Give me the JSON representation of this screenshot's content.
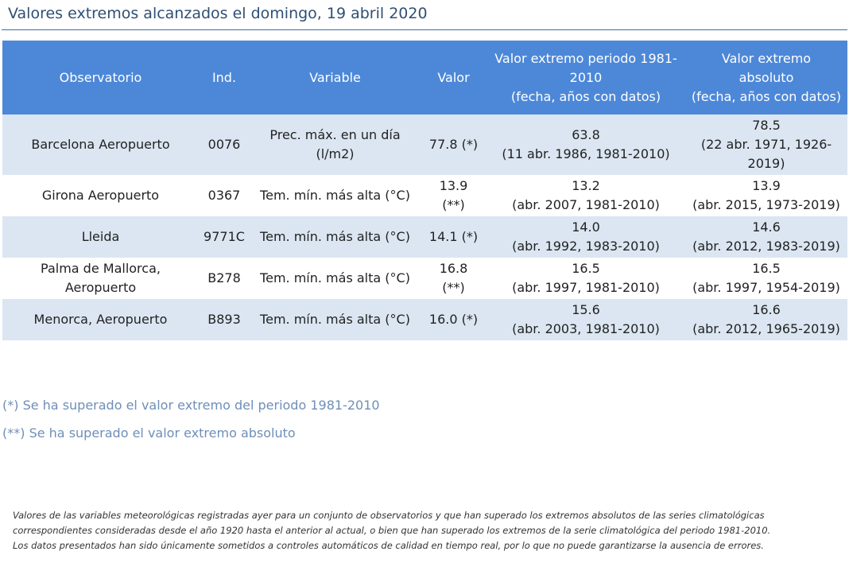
{
  "page": {
    "title": "Valores extremos alcanzados el domingo, 19 abril 2020"
  },
  "table": {
    "headers": {
      "observatorio": "Observatorio",
      "ind": "Ind.",
      "variable": "Variable",
      "valor": "Valor",
      "extremo_periodo": [
        "Valor extremo periodo 1981-",
        "2010",
        "(fecha, años con datos)"
      ],
      "extremo_absoluto": [
        "Valor extremo",
        "absoluto",
        "(fecha, años con datos)"
      ]
    },
    "rows": [
      {
        "observatorio": [
          "Barcelona Aeropuerto"
        ],
        "ind": "0076",
        "variable": [
          "Prec. máx. en un día",
          "(l/m2)"
        ],
        "valor": [
          "77.8 (*)"
        ],
        "extremo_periodo": [
          "63.8",
          "(11 abr. 1986, 1981-2010)"
        ],
        "extremo_absoluto": [
          "78.5",
          "(22 abr. 1971, 1926-",
          "2019)"
        ]
      },
      {
        "observatorio": [
          "Girona Aeropuerto"
        ],
        "ind": "0367",
        "variable": [
          "Tem. mín. más alta (°C)"
        ],
        "valor": [
          "13.9",
          "(**)"
        ],
        "extremo_periodo": [
          "13.2",
          "(abr. 2007, 1981-2010)"
        ],
        "extremo_absoluto": [
          "13.9",
          "(abr. 2015, 1973-2019)"
        ]
      },
      {
        "observatorio": [
          "Lleida"
        ],
        "ind": "9771C",
        "variable": [
          "Tem. mín. más alta (°C)"
        ],
        "valor": [
          "14.1 (*)"
        ],
        "extremo_periodo": [
          "14.0",
          "(abr. 1992, 1983-2010)"
        ],
        "extremo_absoluto": [
          "14.6",
          "(abr. 2012, 1983-2019)"
        ]
      },
      {
        "observatorio": [
          "Palma de Mallorca,",
          "Aeropuerto"
        ],
        "ind": "B278",
        "variable": [
          "Tem. mín. más alta (°C)"
        ],
        "valor": [
          "16.8",
          "(**)"
        ],
        "extremo_periodo": [
          "16.5",
          "(abr. 1997, 1981-2010)"
        ],
        "extremo_absoluto": [
          "16.5",
          "(abr. 1997, 1954-2019)"
        ]
      },
      {
        "observatorio": [
          "Menorca, Aeropuerto"
        ],
        "ind": "B893",
        "variable": [
          "Tem. mín. más alta (°C)"
        ],
        "valor": [
          "16.0 (*)"
        ],
        "extremo_periodo": [
          "15.6",
          "(abr. 2003, 1981-2010)"
        ],
        "extremo_absoluto": [
          "16.6",
          "(abr. 2012, 1965-2019)"
        ]
      }
    ]
  },
  "legend": {
    "single_star": "(*) Se ha superado el valor extremo del periodo 1981-2010",
    "double_star": "(**) Se ha superado el valor extremo absoluto"
  },
  "footnote": {
    "lines": [
      "Valores de las variables meteorológicas registradas ayer para un conjunto de observatorios y que han superado los extremos absolutos de las series climatológicas",
      "correspondientes consideradas desde el año 1920 hasta el anterior al actual, o bien que han superado los extremos de la serie climatológica del periodo 1981-2010.",
      "Los datos presentados han sido únicamente sometidos a controles automáticos de calidad en tiempo real, por lo que no puede garantizarse la ausencia de errores."
    ]
  },
  "colors": {
    "header_bg": "#4d88d8",
    "shaded_row": "#dbe6f2",
    "title_text": "#2f4f73",
    "legend_text": "#6e8fb8"
  }
}
